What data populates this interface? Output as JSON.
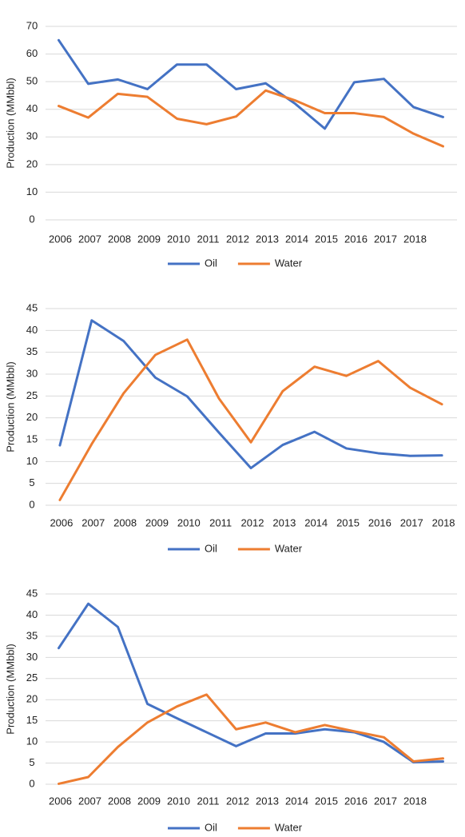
{
  "chart_data": [
    {
      "type": "line",
      "ylabel": "Production (MMbbl)",
      "categories": [
        "2006",
        "2007",
        "2008",
        "2009",
        "2010",
        "2011",
        "2012",
        "2013",
        "2014",
        "2015",
        "2016",
        "2017",
        "2018",
        null
      ],
      "series": [
        {
          "name": "Oil",
          "color": "#4472c4",
          "values": [
            65,
            49.2,
            50.8,
            47.3,
            56.2,
            56.2,
            47.3,
            49.4,
            42,
            33,
            49.8,
            51,
            40.8,
            37.2
          ]
        },
        {
          "name": "Water",
          "color": "#ed7d31",
          "values": [
            41.2,
            37,
            45.6,
            44.5,
            36.6,
            34.6,
            37.4,
            46.8,
            43.2,
            38.6,
            38.6,
            37.2,
            31.2,
            26.6
          ]
        }
      ],
      "ylim": [
        0,
        70
      ],
      "yticks": [
        0,
        10,
        20,
        30,
        40,
        50,
        60,
        70
      ],
      "grid": true,
      "legend": "bottom"
    },
    {
      "type": "line",
      "ylabel": "Production (MMbbl)",
      "categories": [
        "2006",
        "2007",
        "2008",
        "2009",
        "2010",
        "2011",
        "2012",
        "2013",
        "2014",
        "2015",
        "2016",
        "2017",
        "2018"
      ],
      "series": [
        {
          "name": "Oil",
          "color": "#4472c4",
          "values": [
            13.7,
            42.3,
            37.6,
            29.2,
            24.9,
            16.6,
            8.5,
            13.8,
            16.8,
            13,
            11.9,
            11.3,
            11.4
          ]
        },
        {
          "name": "Water",
          "color": "#ed7d31",
          "values": [
            1.2,
            14,
            25.6,
            34.4,
            37.9,
            24.4,
            14.4,
            26.1,
            31.7,
            29.6,
            33,
            26.9,
            23.1
          ]
        }
      ],
      "ylim": [
        0,
        45
      ],
      "yticks": [
        0,
        5,
        10,
        15,
        20,
        25,
        30,
        35,
        40,
        45
      ],
      "grid": true,
      "legend": "bottom"
    },
    {
      "type": "line",
      "ylabel": "Production (MMbbl)",
      "categories": [
        "2006",
        "2007",
        "2008",
        "2009",
        "2010",
        "2011",
        "2012",
        "2013",
        "2014",
        "2015",
        "2016",
        "2017",
        "2018",
        null
      ],
      "series": [
        {
          "name": "Oil",
          "color": "#4472c4",
          "values": [
            32.2,
            42.7,
            37.2,
            19,
            15.6,
            12.3,
            9,
            12,
            12,
            13,
            12.3,
            10,
            5.2,
            5.4
          ]
        },
        {
          "name": "Water",
          "color": "#ed7d31",
          "values": [
            0.1,
            1.7,
            8.8,
            14.6,
            18.4,
            21.2,
            13,
            14.6,
            12.3,
            14,
            12.5,
            11.1,
            5.4,
            6.1
          ]
        }
      ],
      "ylim": [
        0,
        45
      ],
      "yticks": [
        0,
        5,
        10,
        15,
        20,
        25,
        30,
        35,
        40,
        45
      ],
      "grid": true,
      "legend": "bottom"
    }
  ]
}
